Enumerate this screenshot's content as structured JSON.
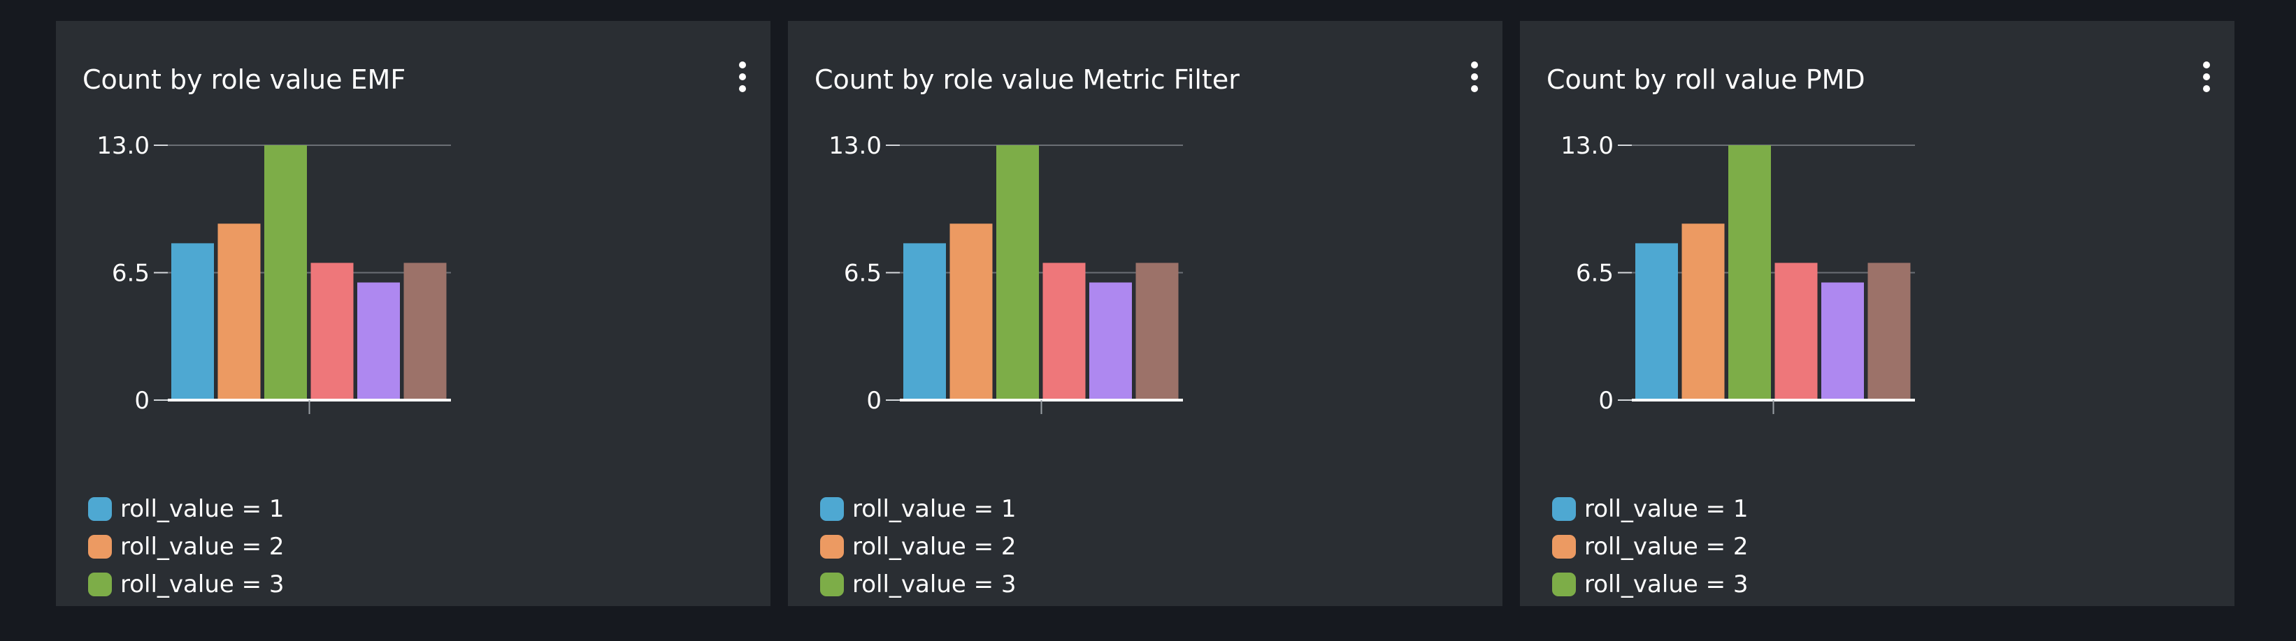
{
  "widgets": [
    {
      "title": "Count by role value EMF",
      "chart_data": {
        "type": "bar",
        "ylim": [
          0,
          13
        ],
        "yticks": [
          "13.0",
          "6.5",
          "0"
        ],
        "grid": true,
        "legend_placement": "bottom-left",
        "series": [
          {
            "name": "roll_value = 1",
            "value": 8,
            "color": "#4ea8d2"
          },
          {
            "name": "roll_value = 2",
            "value": 9,
            "color": "#ec9a62"
          },
          {
            "name": "roll_value = 3",
            "value": 13,
            "color": "#7dad48"
          },
          {
            "name": "",
            "value": 7,
            "color": "#ee777a"
          },
          {
            "name": "",
            "value": 6,
            "color": "#ae88f0"
          },
          {
            "name": "",
            "value": 7,
            "color": "#9c7269"
          }
        ]
      }
    },
    {
      "title": "Count by role value Metric Filter",
      "chart_data": {
        "type": "bar",
        "ylim": [
          0,
          13
        ],
        "yticks": [
          "13.0",
          "6.5",
          "0"
        ],
        "grid": true,
        "legend_placement": "bottom-left",
        "series": [
          {
            "name": "roll_value = 1",
            "value": 8,
            "color": "#4ea8d2"
          },
          {
            "name": "roll_value = 2",
            "value": 9,
            "color": "#ec9a62"
          },
          {
            "name": "roll_value = 3",
            "value": 13,
            "color": "#7dad48"
          },
          {
            "name": "",
            "value": 7,
            "color": "#ee777a"
          },
          {
            "name": "",
            "value": 6,
            "color": "#ae88f0"
          },
          {
            "name": "",
            "value": 7,
            "color": "#9c7269"
          }
        ]
      }
    },
    {
      "title": "Count by roll value PMD",
      "chart_data": {
        "type": "bar",
        "ylim": [
          0,
          13
        ],
        "yticks": [
          "13.0",
          "6.5",
          "0"
        ],
        "grid": true,
        "legend_placement": "bottom-left",
        "series": [
          {
            "name": "roll_value = 1",
            "value": 8,
            "color": "#4ea8d2"
          },
          {
            "name": "roll_value = 2",
            "value": 9,
            "color": "#ec9a62"
          },
          {
            "name": "roll_value = 3",
            "value": 13,
            "color": "#7dad48"
          },
          {
            "name": "",
            "value": 7,
            "color": "#ee777a"
          },
          {
            "name": "",
            "value": 6,
            "color": "#ae88f0"
          },
          {
            "name": "",
            "value": 7,
            "color": "#9c7269"
          }
        ]
      }
    }
  ]
}
